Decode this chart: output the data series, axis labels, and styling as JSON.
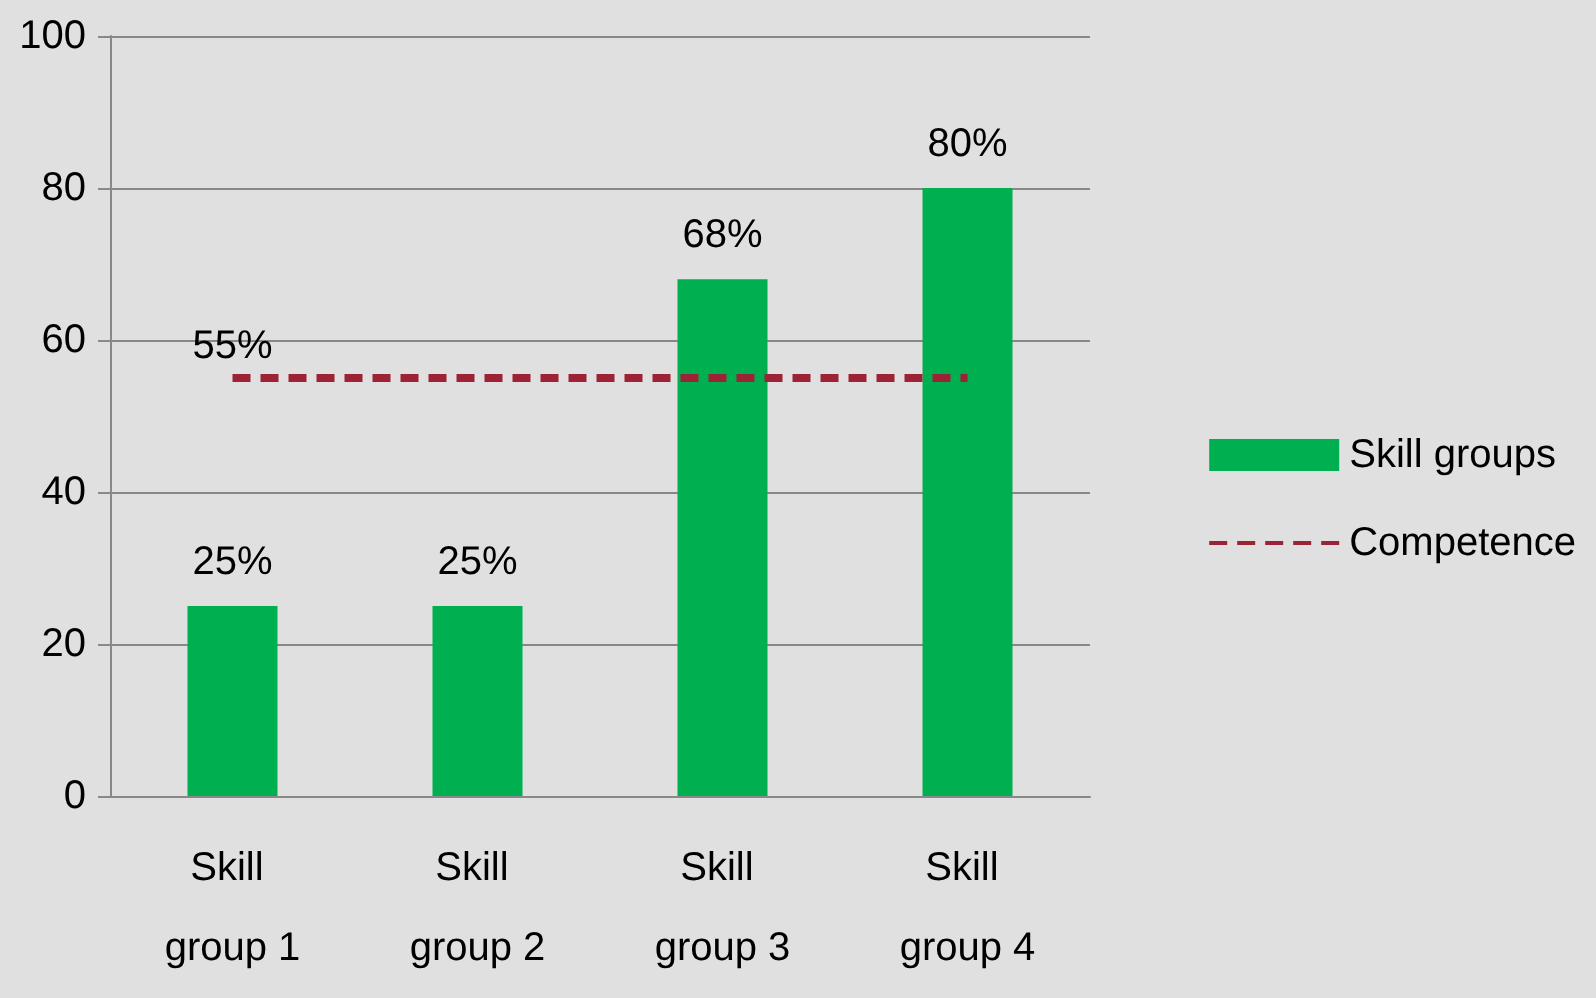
{
  "chart_data": {
    "type": "bar",
    "categories": [
      "Skill group 1",
      "Skill group 2",
      "Skill group 3",
      "Skill group 4"
    ],
    "series": [
      {
        "name": "Skill groups",
        "color": "#00b050",
        "values": [
          25,
          25,
          68,
          80
        ],
        "value_labels": [
          "25%",
          "25%",
          "68%",
          "80%"
        ]
      },
      {
        "name": "Competence",
        "type": "line",
        "color": "#9b2335",
        "line_style": "dashed",
        "marker": "none",
        "values": [
          55,
          55,
          55,
          55
        ],
        "value_labels": [
          "55%",
          null,
          null,
          null
        ]
      }
    ],
    "ylim": [
      0,
      100
    ],
    "yticks": [
      0,
      20,
      40,
      60,
      80,
      100
    ],
    "grid": "y",
    "legend": "right"
  }
}
